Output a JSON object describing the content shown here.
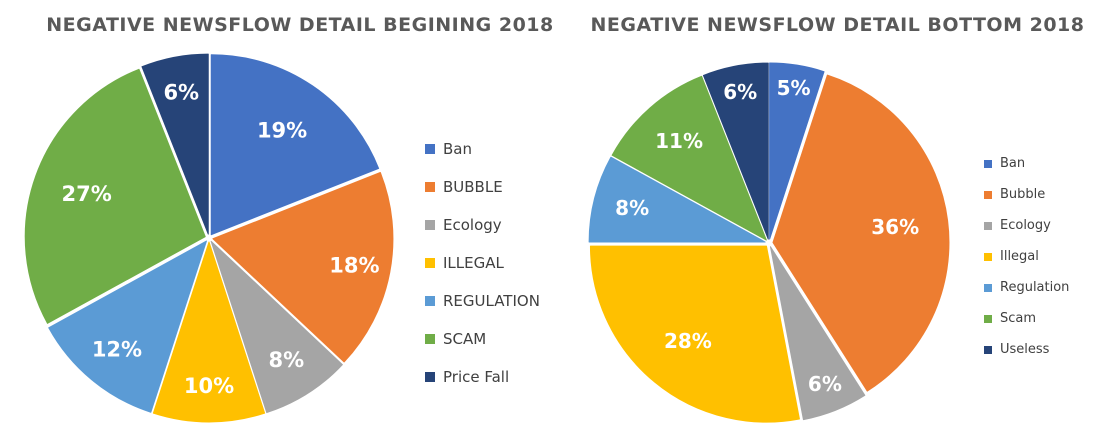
{
  "chart_data": [
    {
      "type": "pie",
      "title": "NEGATIVE NEWSFLOW DETAIL BEGINING 2018",
      "legend_position": "right",
      "slices": [
        {
          "label": "Ban",
          "value": 19,
          "display": "19%",
          "color": "#4472C4"
        },
        {
          "label": "BUBBLE",
          "value": 18,
          "display": "18%",
          "color": "#ED7D31"
        },
        {
          "label": "Ecology",
          "value": 8,
          "display": "8%",
          "color": "#A5A5A5"
        },
        {
          "label": "ILLEGAL",
          "value": 10,
          "display": "10%",
          "color": "#FFC000"
        },
        {
          "label": "REGULATION",
          "value": 12,
          "display": "12%",
          "color": "#5B9BD5"
        },
        {
          "label": "SCAM",
          "value": 27,
          "display": "27%",
          "color": "#70AD47"
        },
        {
          "label": "Price Fall",
          "value": 6,
          "display": "6%",
          "color": "#264478"
        }
      ]
    },
    {
      "type": "pie",
      "title": "NEGATIVE NEWSFLOW DETAIL BOTTOM 2018",
      "legend_position": "right",
      "slices": [
        {
          "label": "Ban",
          "value": 5,
          "display": "5%",
          "color": "#4472C4"
        },
        {
          "label": "Bubble",
          "value": 36,
          "display": "36%",
          "color": "#ED7D31"
        },
        {
          "label": "Ecology",
          "value": 6,
          "display": "6%",
          "color": "#A5A5A5"
        },
        {
          "label": "Illegal",
          "value": 28,
          "display": "28%",
          "color": "#FFC000"
        },
        {
          "label": "Regulation",
          "value": 8,
          "display": "8%",
          "color": "#5B9BD5"
        },
        {
          "label": "Scam",
          "value": 11,
          "display": "11%",
          "color": "#70AD47"
        },
        {
          "label": "Useless",
          "value": 6,
          "display": "6%",
          "color": "#264478"
        }
      ]
    }
  ]
}
